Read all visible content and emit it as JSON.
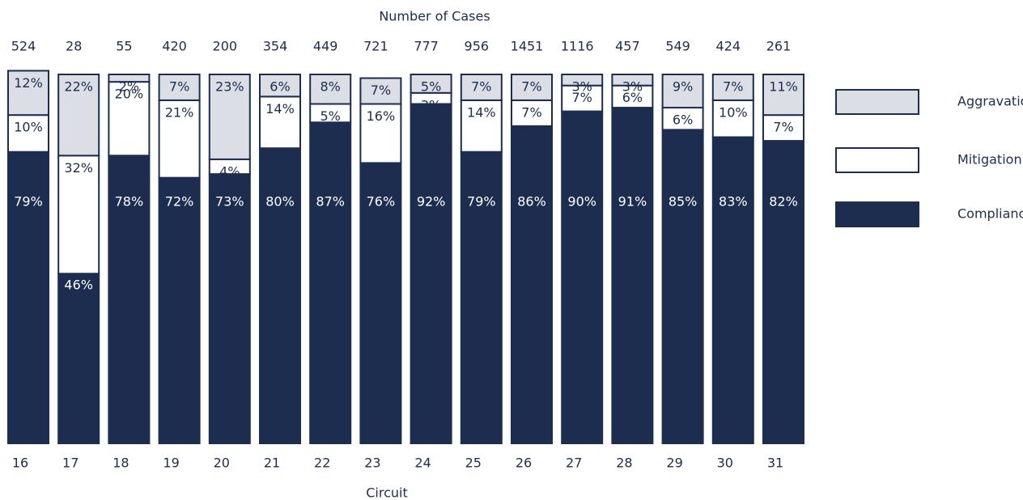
{
  "chart_data": {
    "type": "stacked_bar",
    "top_title": "Number of Cases",
    "x_label": "Circuit",
    "categories": [
      "16",
      "17",
      "18",
      "19",
      "20",
      "21",
      "22",
      "23",
      "24",
      "25",
      "26",
      "27",
      "28",
      "29",
      "30",
      "31"
    ],
    "cases": [
      524,
      28,
      55,
      420,
      200,
      354,
      449,
      721,
      777,
      956,
      1451,
      1116,
      457,
      549,
      424,
      261
    ],
    "series": [
      {
        "name": "Compliance",
        "color": "#1c2d4f",
        "values": [
          79,
          46,
          78,
          72,
          73,
          80,
          87,
          76,
          92,
          79,
          86,
          90,
          91,
          85,
          83,
          82
        ],
        "value_labels": [
          "79%",
          "46%",
          "78%",
          "72%",
          "73%",
          "80%",
          "87%",
          "76%",
          "92%",
          "79%",
          "86%",
          "90%",
          "91%",
          "85%",
          "83%",
          "82%"
        ]
      },
      {
        "name": "Mitigation",
        "color": "#ffffff",
        "values": [
          10,
          32,
          20,
          21,
          4,
          14,
          5,
          16,
          3,
          14,
          7,
          7,
          6,
          6,
          10,
          7
        ],
        "value_labels": [
          "10%",
          "32%",
          "20%",
          "21%",
          "4%",
          "14%",
          "5%",
          "16%",
          "3%",
          "14%",
          "7%",
          "7%",
          "6%",
          "6%",
          "10%",
          "7%"
        ]
      },
      {
        "name": "Aggravation",
        "color": "#dcdee6",
        "values": [
          12,
          22,
          2,
          7,
          23,
          6,
          8,
          7,
          5,
          7,
          7,
          3,
          3,
          9,
          7,
          11
        ],
        "value_labels": [
          "12%",
          "22%",
          "2%",
          "7%",
          "23%",
          "6%",
          "8%",
          "7%",
          "5%",
          "7%",
          "7%",
          "3%",
          "3%",
          "9%",
          "7%",
          "11%"
        ]
      }
    ]
  }
}
